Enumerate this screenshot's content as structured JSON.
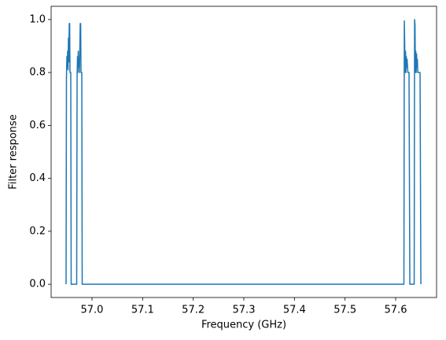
{
  "chart_data": {
    "type": "line",
    "xlabel": "Frequency (GHz)",
    "ylabel": "Filter response",
    "x": [
      56.9487,
      56.9495,
      56.9503,
      56.9511,
      56.9518,
      56.9526,
      56.9534,
      56.9542,
      56.955,
      56.9558,
      56.9565,
      56.958,
      56.9588,
      56.9697,
      56.9705,
      56.9713,
      56.972,
      56.9728,
      56.9736,
      56.9744,
      56.9752,
      56.976,
      56.9767,
      56.9775,
      56.9783,
      56.9798,
      56.9806,
      57.6163,
      57.6171,
      57.6179,
      57.6187,
      57.6195,
      57.6202,
      57.621,
      57.6218,
      57.6226,
      57.6241,
      57.6264,
      57.628,
      57.6366,
      57.6374,
      57.6382,
      57.639,
      57.6398,
      57.6405,
      57.6413,
      57.6421,
      57.6429,
      57.6437,
      57.6452,
      57.6482,
      57.6498
    ],
    "series": [
      {
        "color": "#1f77b4",
        "values": [
          0,
          0.78,
          0.86,
          0.82,
          0.88,
          0.81,
          0.93,
          0.84,
          0.985,
          0.985,
          0.8,
          0.8,
          0,
          0,
          0.78,
          0.86,
          0.8,
          0.88,
          0.82,
          0.85,
          0.8,
          0.9,
          0.985,
          0.985,
          0.8,
          0.8,
          0,
          0,
          0.995,
          0.9,
          0.8,
          0.88,
          0.8,
          0.86,
          0.82,
          0.85,
          0.8,
          0.8,
          0,
          0,
          1.0,
          0.98,
          0.8,
          0.88,
          0.8,
          0.87,
          0.82,
          0.85,
          0.8,
          0.8,
          0.8,
          0
        ]
      }
    ],
    "xlim": [
      56.9192,
      57.6808
    ],
    "xticks": [
      {
        "value": 57,
        "label": "57.0"
      },
      57.1,
      57.2,
      57.3,
      57.4,
      57.5,
      57.6
    ],
    "ylim": [
      -0.05,
      1.05
    ],
    "yticks": [
      {
        "value": 0,
        "label": "0.0"
      },
      0.2,
      0.4,
      0.6,
      0.8,
      {
        "value": 1,
        "label": "1.0"
      }
    ]
  }
}
